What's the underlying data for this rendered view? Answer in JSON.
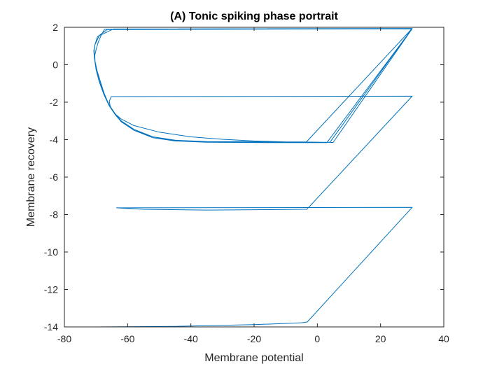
{
  "chart_data": {
    "type": "line",
    "title": "(A) Tonic spiking phase portrait",
    "xlabel": "Membrane potential",
    "ylabel": "Membrane recovery",
    "xlim": [
      -80,
      40
    ],
    "ylim": [
      -14,
      2
    ],
    "xticks": [
      -80,
      -60,
      -40,
      -20,
      0,
      20,
      40
    ],
    "yticks": [
      -14,
      -12,
      -10,
      -8,
      -6,
      -4,
      -2,
      0,
      2
    ],
    "grid": false,
    "legend": "none",
    "series_color": "#0072BD",
    "series": [
      {
        "x": [
          -70,
          -45,
          -20,
          -5,
          -3.2,
          30,
          -63.5,
          -55,
          -35,
          -15,
          -5,
          -3.3,
          30,
          -65.2,
          -65.8,
          -65.4,
          -64,
          -62,
          -58,
          -50,
          -40,
          -30,
          -20,
          -10,
          -3.5,
          30,
          -67.3,
          -68.3,
          -69.3,
          -70,
          -70.4,
          -70.3,
          -69.7,
          -68.7,
          -67.5,
          -66,
          -64,
          -62,
          -58,
          -52,
          -45,
          -35,
          -25,
          -15,
          -5,
          5,
          30,
          -66.5,
          -69.5,
          -70.3,
          -70.6,
          -70.5,
          -70,
          -69,
          -67.5,
          -65.8,
          -64,
          -62,
          -58,
          -52,
          -45,
          -35,
          -25,
          -15,
          -5,
          4,
          30,
          -64.5,
          -69,
          -70.4,
          -70.7,
          -70.5,
          -70,
          -69,
          -67.5,
          -65.8,
          -64,
          -62,
          -58,
          -52,
          -45,
          -35,
          -25,
          -15,
          -5,
          3,
          30
        ],
        "y": [
          -14,
          -13.97,
          -13.88,
          -13.78,
          -13.74,
          -7.62,
          -7.64,
          -7.72,
          -7.76,
          -7.74,
          -7.72,
          -7.72,
          -1.68,
          -1.7,
          -1.95,
          -2.3,
          -2.62,
          -2.9,
          -3.25,
          -3.6,
          -3.85,
          -3.98,
          -4.07,
          -4.12,
          -4.13,
          1.94,
          1.9,
          1.6,
          1.2,
          0.8,
          0.5,
          0.2,
          -0.3,
          -0.85,
          -1.5,
          -2.1,
          -2.65,
          -3.05,
          -3.5,
          -3.85,
          -4.03,
          -4.1,
          -4.11,
          -4.12,
          -4.12,
          -4.15,
          1.92,
          1.88,
          1.5,
          1.1,
          0.8,
          0.4,
          -0.2,
          -0.85,
          -1.55,
          -2.15,
          -2.6,
          -3.0,
          -3.45,
          -3.85,
          -4.05,
          -4.12,
          -4.13,
          -4.14,
          -4.14,
          -4.14,
          1.94,
          1.91,
          1.55,
          1.05,
          0.75,
          0.35,
          -0.25,
          -0.9,
          -1.6,
          -2.2,
          -2.65,
          -3.05,
          -3.5,
          -3.9,
          -4.07,
          -4.14,
          -4.15,
          -4.16,
          -4.16,
          -4.16,
          1.93
        ]
      }
    ]
  }
}
